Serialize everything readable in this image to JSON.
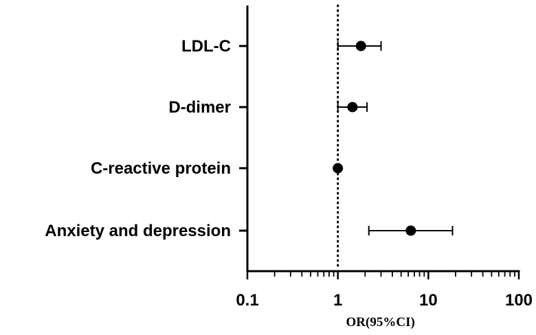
{
  "chart_data": {
    "type": "scatter",
    "subtype": "forest-plot",
    "title": "",
    "xlabel": "OR(95%CI)",
    "ylabel": "",
    "xscale": "log",
    "xlim": [
      0.1,
      100
    ],
    "xticks": [
      0.1,
      1,
      10,
      100
    ],
    "xtick_labels": [
      "0.1",
      "1",
      "10",
      "100"
    ],
    "reference_line": 1,
    "categories": [
      "LDL-C",
      "D-dimer",
      "C-reactive protein",
      "Anxiety and depression"
    ],
    "points": [
      {
        "label": "LDL-C",
        "or": 1.8,
        "ci_low": 1.0,
        "ci_high": 3.0
      },
      {
        "label": "D-dimer",
        "or": 1.45,
        "ci_low": 1.0,
        "ci_high": 2.1
      },
      {
        "label": "C-reactive protein",
        "or": 1.0,
        "ci_low": 0.99,
        "ci_high": 1.01
      },
      {
        "label": "Anxiety and depression",
        "or": 6.4,
        "ci_low": 2.2,
        "ci_high": 18.5
      }
    ],
    "grid": false,
    "legend": "none",
    "colors": {
      "marker": "#000000",
      "axis": "#000000",
      "reference": "#000000"
    }
  }
}
